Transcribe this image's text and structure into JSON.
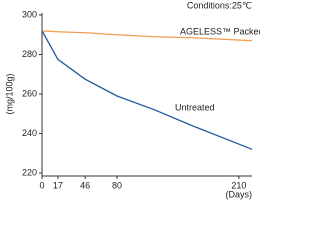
{
  "chart_data": {
    "type": "line",
    "title": "Conditions:25℃",
    "y_label": "(mg/100g)",
    "x_label": "(Days)",
    "x": [
      0,
      17,
      46,
      80,
      120,
      160,
      224
    ],
    "series": [
      {
        "name": "AGELESS™ Packed",
        "color": "#f0a050",
        "values": [
          292,
          291.5,
          291,
          290,
          289,
          288.5,
          287
        ]
      },
      {
        "name": "Untreated",
        "color": "#1f5a9a",
        "values": [
          292,
          277.5,
          267.5,
          259,
          252,
          244,
          232
        ]
      }
    ],
    "xlim": [
      0,
      224
    ],
    "xticks": [
      0,
      17,
      46,
      80,
      210
    ],
    "ylim": [
      220,
      300
    ],
    "yticks": [
      220,
      240,
      260,
      280,
      300
    ],
    "grid": false
  }
}
